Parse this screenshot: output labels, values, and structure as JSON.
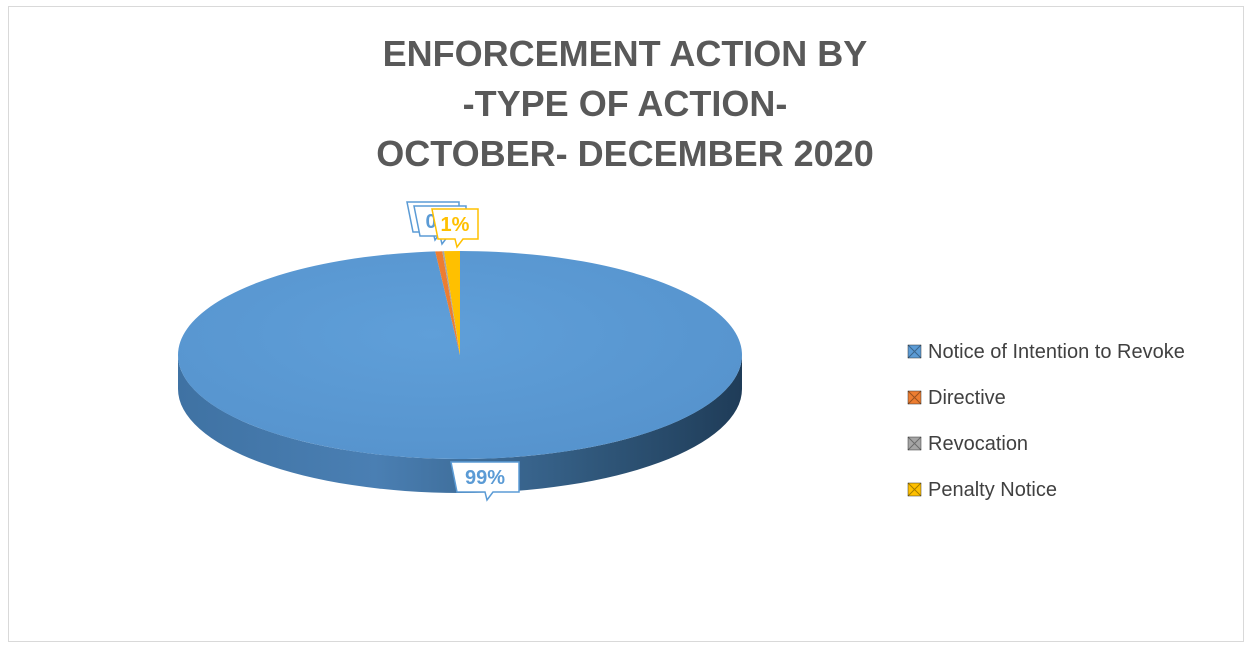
{
  "chart_data": {
    "type": "pie",
    "title_lines": [
      "ENFORCEMENT ACTION BY",
      "-TYPE OF ACTION-",
      "OCTOBER- DECEMBER 2020"
    ],
    "categories": [
      "Notice of Intention to Revoke",
      "Directive",
      "Revocation",
      "Penalty Notice"
    ],
    "values": [
      98.6,
      0.4,
      0.1,
      0.9
    ],
    "data_labels": [
      "99%",
      "0%",
      "0%",
      "1%"
    ],
    "colors": [
      "#5b9bd5",
      "#ed7d31",
      "#a5a5a5",
      "#ffc000"
    ],
    "legend_position": "right",
    "three_d": true
  }
}
